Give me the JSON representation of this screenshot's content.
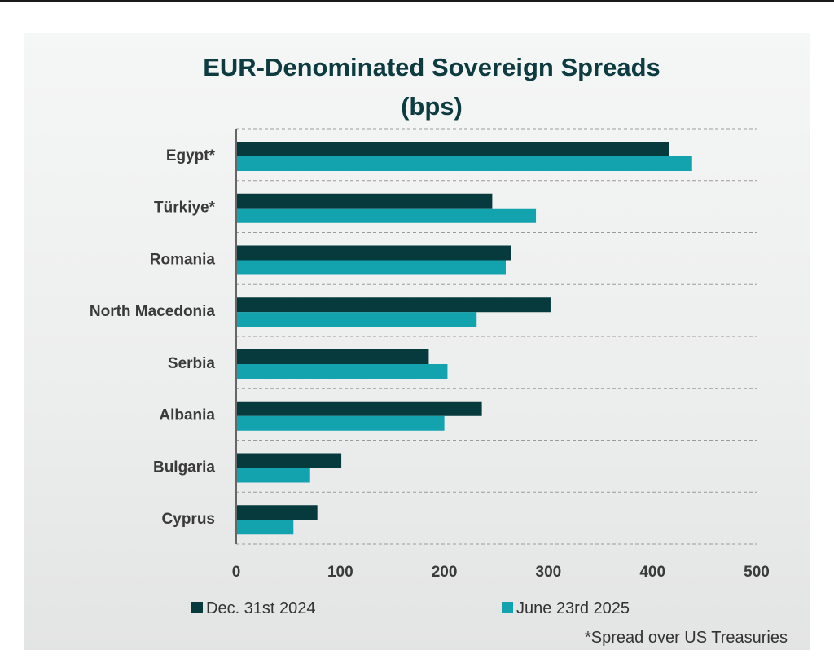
{
  "chart_data": {
    "type": "bar",
    "orientation": "horizontal",
    "title": "EUR-Denominated Sovereign Spreads",
    "subtitle": "(bps)",
    "categories": [
      "Egypt*",
      "Türkiye*",
      "Romania",
      "North Macedonia",
      "Serbia",
      "Albania",
      "Bulgaria",
      "Cyprus"
    ],
    "series": [
      {
        "name": "Dec. 31st 2024",
        "color": "#073a3d",
        "values": [
          416,
          246,
          264,
          302,
          185,
          236,
          101,
          78
        ]
      },
      {
        "name": "June 23rd 2025",
        "color": "#13a3ae",
        "values": [
          438,
          288,
          259,
          231,
          203,
          200,
          71,
          55
        ]
      }
    ],
    "xlim": [
      0,
      500
    ],
    "xticks": [
      "0",
      "100",
      "200",
      "300",
      "400",
      "500"
    ],
    "grid": true,
    "legend": "bottom",
    "footnote": "*Spread over US Treasuries"
  }
}
